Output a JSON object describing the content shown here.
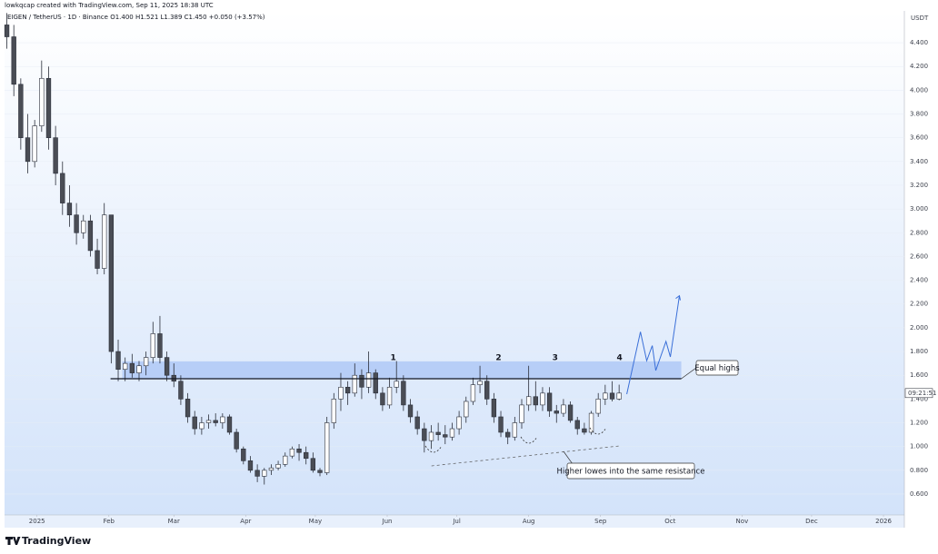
{
  "chart_data": {
    "type": "candlestick",
    "header": "lowkqcap created with TradingView.com, Sep 11, 2025 18:38 UTC",
    "legend": "EIGEN / TetherUS · 1D · Binance  O1.400  H1.521  L1.389  C1.450  +0.050 (+3.57%)",
    "y_axis_label": "USDT",
    "countdown": "09:21:51",
    "brand": "TradingView",
    "up_color": "#ffffff",
    "down_color": "#4a4d55",
    "wick_color": "#2a2e39",
    "xlim": [
      -14,
      374
    ],
    "ylim": [
      0.424,
      4.668
    ],
    "xticks": [
      {
        "value": 0,
        "label": "2025"
      },
      {
        "value": 31,
        "label": "Feb"
      },
      {
        "value": 59,
        "label": "Mar"
      },
      {
        "value": 90,
        "label": "Apr"
      },
      {
        "value": 120,
        "label": "May"
      },
      {
        "value": 151,
        "label": "Jun"
      },
      {
        "value": 181,
        "label": "Jul"
      },
      {
        "value": 212,
        "label": "Aug"
      },
      {
        "value": 243,
        "label": "Sep"
      },
      {
        "value": 273,
        "label": "Oct"
      },
      {
        "value": 304,
        "label": "Nov"
      },
      {
        "value": 334,
        "label": "Dec"
      },
      {
        "value": 365,
        "label": "2026"
      }
    ],
    "yticks": [
      {
        "value": 0.6,
        "label": "0.600"
      },
      {
        "value": 0.8,
        "label": "0.800"
      },
      {
        "value": 1.0,
        "label": "1.000"
      },
      {
        "value": 1.2,
        "label": "1.200"
      },
      {
        "value": 1.4,
        "label": "1.400"
      },
      {
        "value": 1.6,
        "label": "1.600"
      },
      {
        "value": 1.8,
        "label": "1.800"
      },
      {
        "value": 2.0,
        "label": "2.000"
      },
      {
        "value": 2.2,
        "label": "2.200"
      },
      {
        "value": 2.4,
        "label": "2.400"
      },
      {
        "value": 2.6,
        "label": "2.600"
      },
      {
        "value": 2.8,
        "label": "2.800"
      },
      {
        "value": 3.0,
        "label": "3.000"
      },
      {
        "value": 3.2,
        "label": "3.200"
      },
      {
        "value": 3.4,
        "label": "3.400"
      },
      {
        "value": 3.6,
        "label": "3.600"
      },
      {
        "value": 3.8,
        "label": "3.800"
      },
      {
        "value": 4.0,
        "label": "4.000"
      },
      {
        "value": 4.2,
        "label": "4.200"
      },
      {
        "value": 4.4,
        "label": "4.400"
      }
    ],
    "x": [
      -13,
      -10,
      -7,
      -4,
      -1,
      2,
      5,
      8,
      11,
      14,
      17,
      20,
      23,
      26,
      29,
      32,
      35,
      38,
      41,
      44,
      47,
      50,
      53,
      56,
      59,
      62,
      65,
      68,
      71,
      74,
      77,
      80,
      83,
      86,
      89,
      92,
      95,
      98,
      101,
      104,
      107,
      110,
      113,
      116,
      119,
      122,
      125,
      128,
      131,
      134,
      137,
      140,
      143,
      146,
      149,
      152,
      155,
      158,
      161,
      164,
      167,
      170,
      173,
      176,
      179,
      182,
      185,
      188,
      191,
      194,
      197,
      200,
      203,
      206,
      209,
      212,
      215,
      218,
      221,
      224,
      227,
      230,
      233,
      236,
      239,
      242,
      245,
      248,
      251
    ],
    "open": [
      4.55,
      4.45,
      4.05,
      3.6,
      3.4,
      3.7,
      4.1,
      3.6,
      3.3,
      3.05,
      2.95,
      2.8,
      2.9,
      2.65,
      2.5,
      2.95,
      1.8,
      1.65,
      1.7,
      1.62,
      1.68,
      1.75,
      1.95,
      1.75,
      1.6,
      1.55,
      1.4,
      1.25,
      1.15,
      1.2,
      1.22,
      1.2,
      1.25,
      1.12,
      0.98,
      0.88,
      0.8,
      0.75,
      0.8,
      0.82,
      0.85,
      0.92,
      0.98,
      0.95,
      0.9,
      0.8,
      0.78,
      1.2,
      1.4,
      1.5,
      1.45,
      1.6,
      1.5,
      1.62,
      1.45,
      1.35,
      1.5,
      1.55,
      1.35,
      1.25,
      1.15,
      1.05,
      1.12,
      1.1,
      1.08,
      1.15,
      1.25,
      1.38,
      1.52,
      1.55,
      1.4,
      1.25,
      1.12,
      1.08,
      1.2,
      1.35,
      1.42,
      1.35,
      1.45,
      1.3,
      1.28,
      1.35,
      1.22,
      1.15,
      1.12,
      1.28,
      1.4,
      1.45,
      1.4
    ],
    "high": [
      4.65,
      4.55,
      4.1,
      3.8,
      3.75,
      4.25,
      4.2,
      3.7,
      3.4,
      3.2,
      3.05,
      2.95,
      2.95,
      2.75,
      3.05,
      2.95,
      1.9,
      1.75,
      1.78,
      1.72,
      1.8,
      2.05,
      2.1,
      1.8,
      1.7,
      1.6,
      1.45,
      1.3,
      1.25,
      1.27,
      1.28,
      1.28,
      1.27,
      1.15,
      1.0,
      0.92,
      0.85,
      0.82,
      0.85,
      0.88,
      0.95,
      1.0,
      1.02,
      1.0,
      0.95,
      0.82,
      1.25,
      1.45,
      1.62,
      1.55,
      1.7,
      1.65,
      1.8,
      1.65,
      1.5,
      1.58,
      1.72,
      1.6,
      1.4,
      1.3,
      1.2,
      1.18,
      1.2,
      1.18,
      1.2,
      1.3,
      1.42,
      1.58,
      1.68,
      1.6,
      1.45,
      1.3,
      1.15,
      1.25,
      1.4,
      1.68,
      1.55,
      1.5,
      1.5,
      1.35,
      1.4,
      1.38,
      1.25,
      1.2,
      1.3,
      1.45,
      1.52,
      1.55,
      1.521
    ],
    "low": [
      4.35,
      3.95,
      3.5,
      3.3,
      3.35,
      3.65,
      3.5,
      3.2,
      2.95,
      2.85,
      2.7,
      2.75,
      2.6,
      2.45,
      2.45,
      1.7,
      1.55,
      1.55,
      1.58,
      1.55,
      1.6,
      1.7,
      1.7,
      1.55,
      1.5,
      1.35,
      1.2,
      1.1,
      1.1,
      1.15,
      1.17,
      1.15,
      1.1,
      0.95,
      0.85,
      0.78,
      0.7,
      0.68,
      0.76,
      0.8,
      0.83,
      0.9,
      0.88,
      0.85,
      0.78,
      0.75,
      0.76,
      1.15,
      1.3,
      1.35,
      1.42,
      1.4,
      1.45,
      1.4,
      1.3,
      1.32,
      1.45,
      1.3,
      1.2,
      1.1,
      0.95,
      0.98,
      1.05,
      1.02,
      1.05,
      1.1,
      1.2,
      1.35,
      1.45,
      1.35,
      1.2,
      1.08,
      1.02,
      1.05,
      1.15,
      1.3,
      1.3,
      1.3,
      1.25,
      1.2,
      1.25,
      1.2,
      1.1,
      1.1,
      1.1,
      1.25,
      1.35,
      1.38,
      1.389
    ],
    "close": [
      4.45,
      4.05,
      3.6,
      3.4,
      3.7,
      4.1,
      3.6,
      3.3,
      3.05,
      2.95,
      2.8,
      2.9,
      2.65,
      2.5,
      2.95,
      1.8,
      1.65,
      1.7,
      1.62,
      1.68,
      1.75,
      1.95,
      1.75,
      1.6,
      1.55,
      1.4,
      1.25,
      1.15,
      1.2,
      1.22,
      1.2,
      1.25,
      1.12,
      0.98,
      0.88,
      0.8,
      0.75,
      0.8,
      0.82,
      0.85,
      0.92,
      0.98,
      0.95,
      0.9,
      0.8,
      0.78,
      1.2,
      1.4,
      1.5,
      1.45,
      1.6,
      1.5,
      1.62,
      1.45,
      1.35,
      1.5,
      1.55,
      1.35,
      1.25,
      1.15,
      1.05,
      1.12,
      1.1,
      1.08,
      1.15,
      1.25,
      1.38,
      1.52,
      1.55,
      1.4,
      1.25,
      1.12,
      1.08,
      1.2,
      1.35,
      1.42,
      1.35,
      1.45,
      1.3,
      1.28,
      1.35,
      1.22,
      1.15,
      1.12,
      1.28,
      1.4,
      1.45,
      1.4,
      1.45
    ],
    "zone": {
      "from": 36.8,
      "to": 277.8,
      "low": 1.571,
      "high": 1.717,
      "color": "#a9c4f5"
    },
    "resistance": {
      "from": 31.7,
      "to": 277.8,
      "value": 1.571
    },
    "touches": {
      "labels": [
        "1",
        "2",
        "3",
        "4"
      ],
      "x": [
        153.6,
        199,
        223.4,
        251.2
      ],
      "y": 1.747
    },
    "projection": {
      "x": [
        254.3,
        260.2,
        262.9,
        265.3,
        266.8,
        271.2,
        273.1,
        277
      ],
      "y": [
        1.441,
        1.966,
        1.722,
        1.85,
        1.64,
        1.885,
        1.755,
        2.27
      ]
    },
    "trendline": {
      "x": [
        170.1,
        251.6
      ],
      "y": [
        0.837,
        1.006
      ]
    },
    "equal_highs_label": "Equal highs",
    "higher_lows_label": "Higher lowes into the same resistance"
  }
}
